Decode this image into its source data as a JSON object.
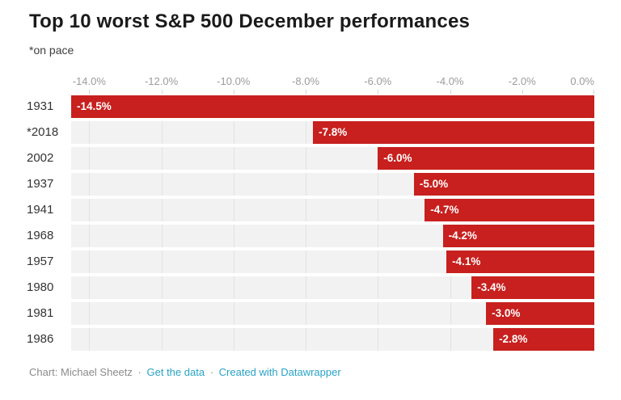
{
  "title": "Top 10 worst S&P 500 December performances",
  "subtitle": "*on pace",
  "chart_data": {
    "type": "bar",
    "orientation": "horizontal",
    "title": "Top 10 worst S&P 500 December performances",
    "subtitle": "*on pace",
    "categories": [
      "1931",
      "*2018",
      "2002",
      "1937",
      "1941",
      "1968",
      "1957",
      "1980",
      "1981",
      "1986"
    ],
    "values": [
      -14.5,
      -7.8,
      -6.0,
      -5.0,
      -4.7,
      -4.2,
      -4.1,
      -3.4,
      -3.0,
      -2.8
    ],
    "value_labels": [
      "-14.5%",
      "-7.8%",
      "-6.0%",
      "-5.0%",
      "-4.7%",
      "-4.2%",
      "-4.1%",
      "-3.4%",
      "-3.0%",
      "-2.8%"
    ],
    "xlabel": "",
    "ylabel": "",
    "xlim": [
      -14.5,
      0
    ],
    "x_ticks": [
      -14,
      -12,
      -10,
      -8,
      -6,
      -4,
      -2,
      0
    ],
    "x_tick_labels": [
      "-14.0%",
      "-12.0%",
      "-10.0%",
      "-8.0%",
      "-6.0%",
      "-4.0%",
      "-2.0%",
      "0.0%"
    ],
    "grid": true,
    "legend": false,
    "bar_color": "#c7201e",
    "track_color": "#f2f2f2",
    "grid_color": "#e2e2e2"
  },
  "footer": {
    "credit": "Chart: Michael Sheetz",
    "separator": "·",
    "link_get_data": "Get the data",
    "link_datawrapper": "Created with Datawrapper",
    "link_color": "#28a3c7"
  }
}
